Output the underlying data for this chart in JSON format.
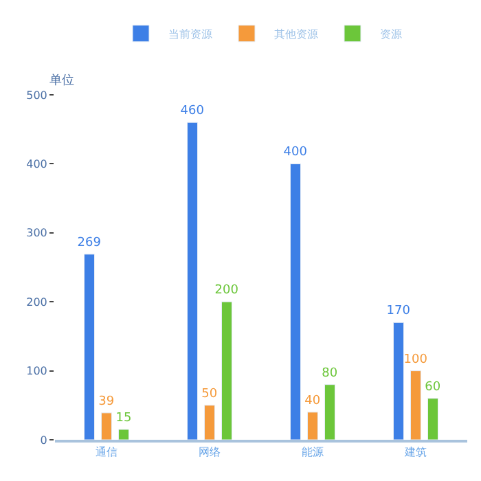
{
  "chart_data": {
    "type": "bar",
    "ylabel": "单位",
    "categories": [
      "通信",
      "网络",
      "能源",
      "建筑"
    ],
    "series": [
      {
        "name": "当前资源",
        "color": "#3d7fe6",
        "values": [
          269,
          460,
          400,
          170
        ]
      },
      {
        "name": "其他资源",
        "color": "#f59a3b",
        "values": [
          39,
          50,
          40,
          100
        ]
      },
      {
        "name": "资源",
        "color": "#6cc63a",
        "values": [
          15,
          200,
          80,
          60
        ]
      }
    ],
    "ylim": [
      0,
      500
    ],
    "yticks": [
      0,
      100,
      200,
      300,
      400,
      500
    ],
    "legend": "top",
    "data_labels": true
  }
}
